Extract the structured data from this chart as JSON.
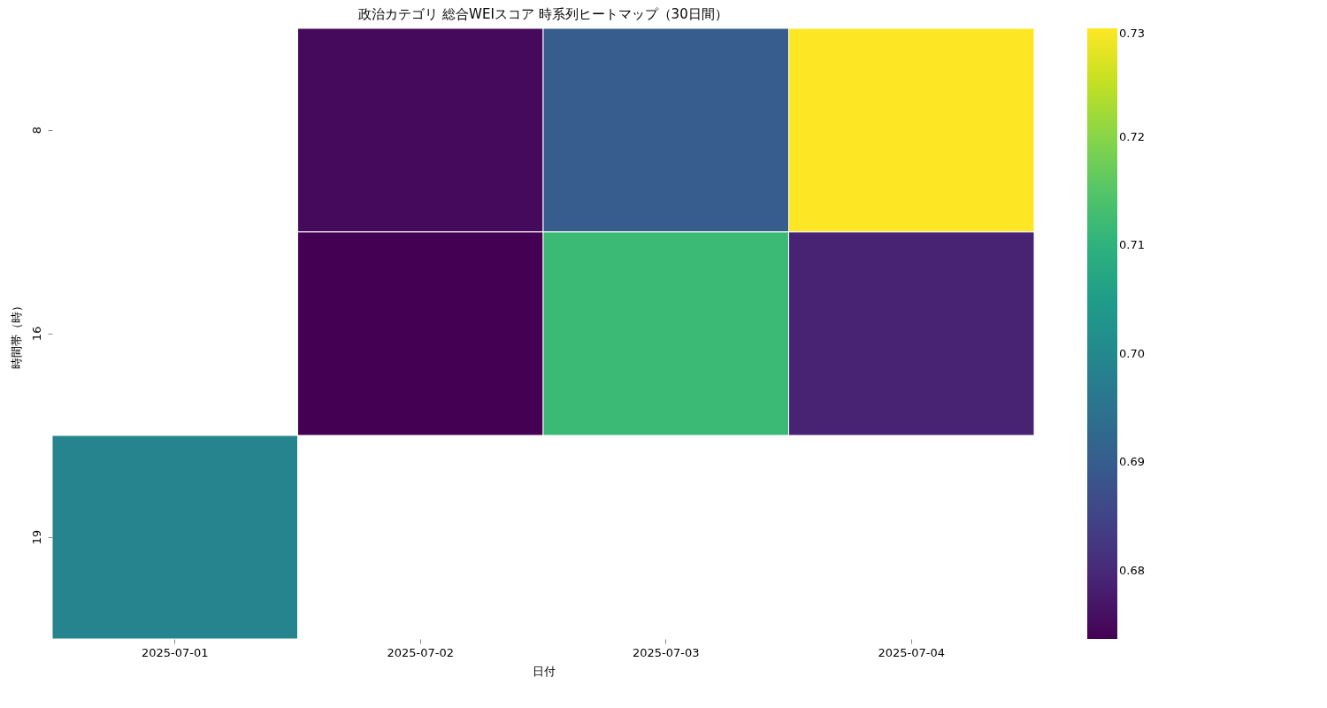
{
  "chart_data": {
    "type": "heatmap",
    "title": "政治カテゴリ 総合WEIスコア 時系列ヒートマップ（30日間）",
    "xlabel": "日付",
    "ylabel": "時間帯（時）",
    "categories": [
      "2025-07-01",
      "2025-07-02",
      "2025-07-03",
      "2025-07-04"
    ],
    "y_categories": [
      "8",
      "16",
      "19"
    ],
    "cells": [
      [
        null,
        0.675,
        0.69,
        0.73
      ],
      [
        null,
        0.6737,
        0.712,
        0.679
      ],
      [
        0.699,
        null,
        null,
        null
      ]
    ],
    "clim": [
      0.6737,
      0.73
    ],
    "cticks": [
      0.68,
      0.69,
      {
        "value": 0.7,
        "label": "0.70"
      },
      0.71,
      0.72,
      0.73
    ]
  }
}
